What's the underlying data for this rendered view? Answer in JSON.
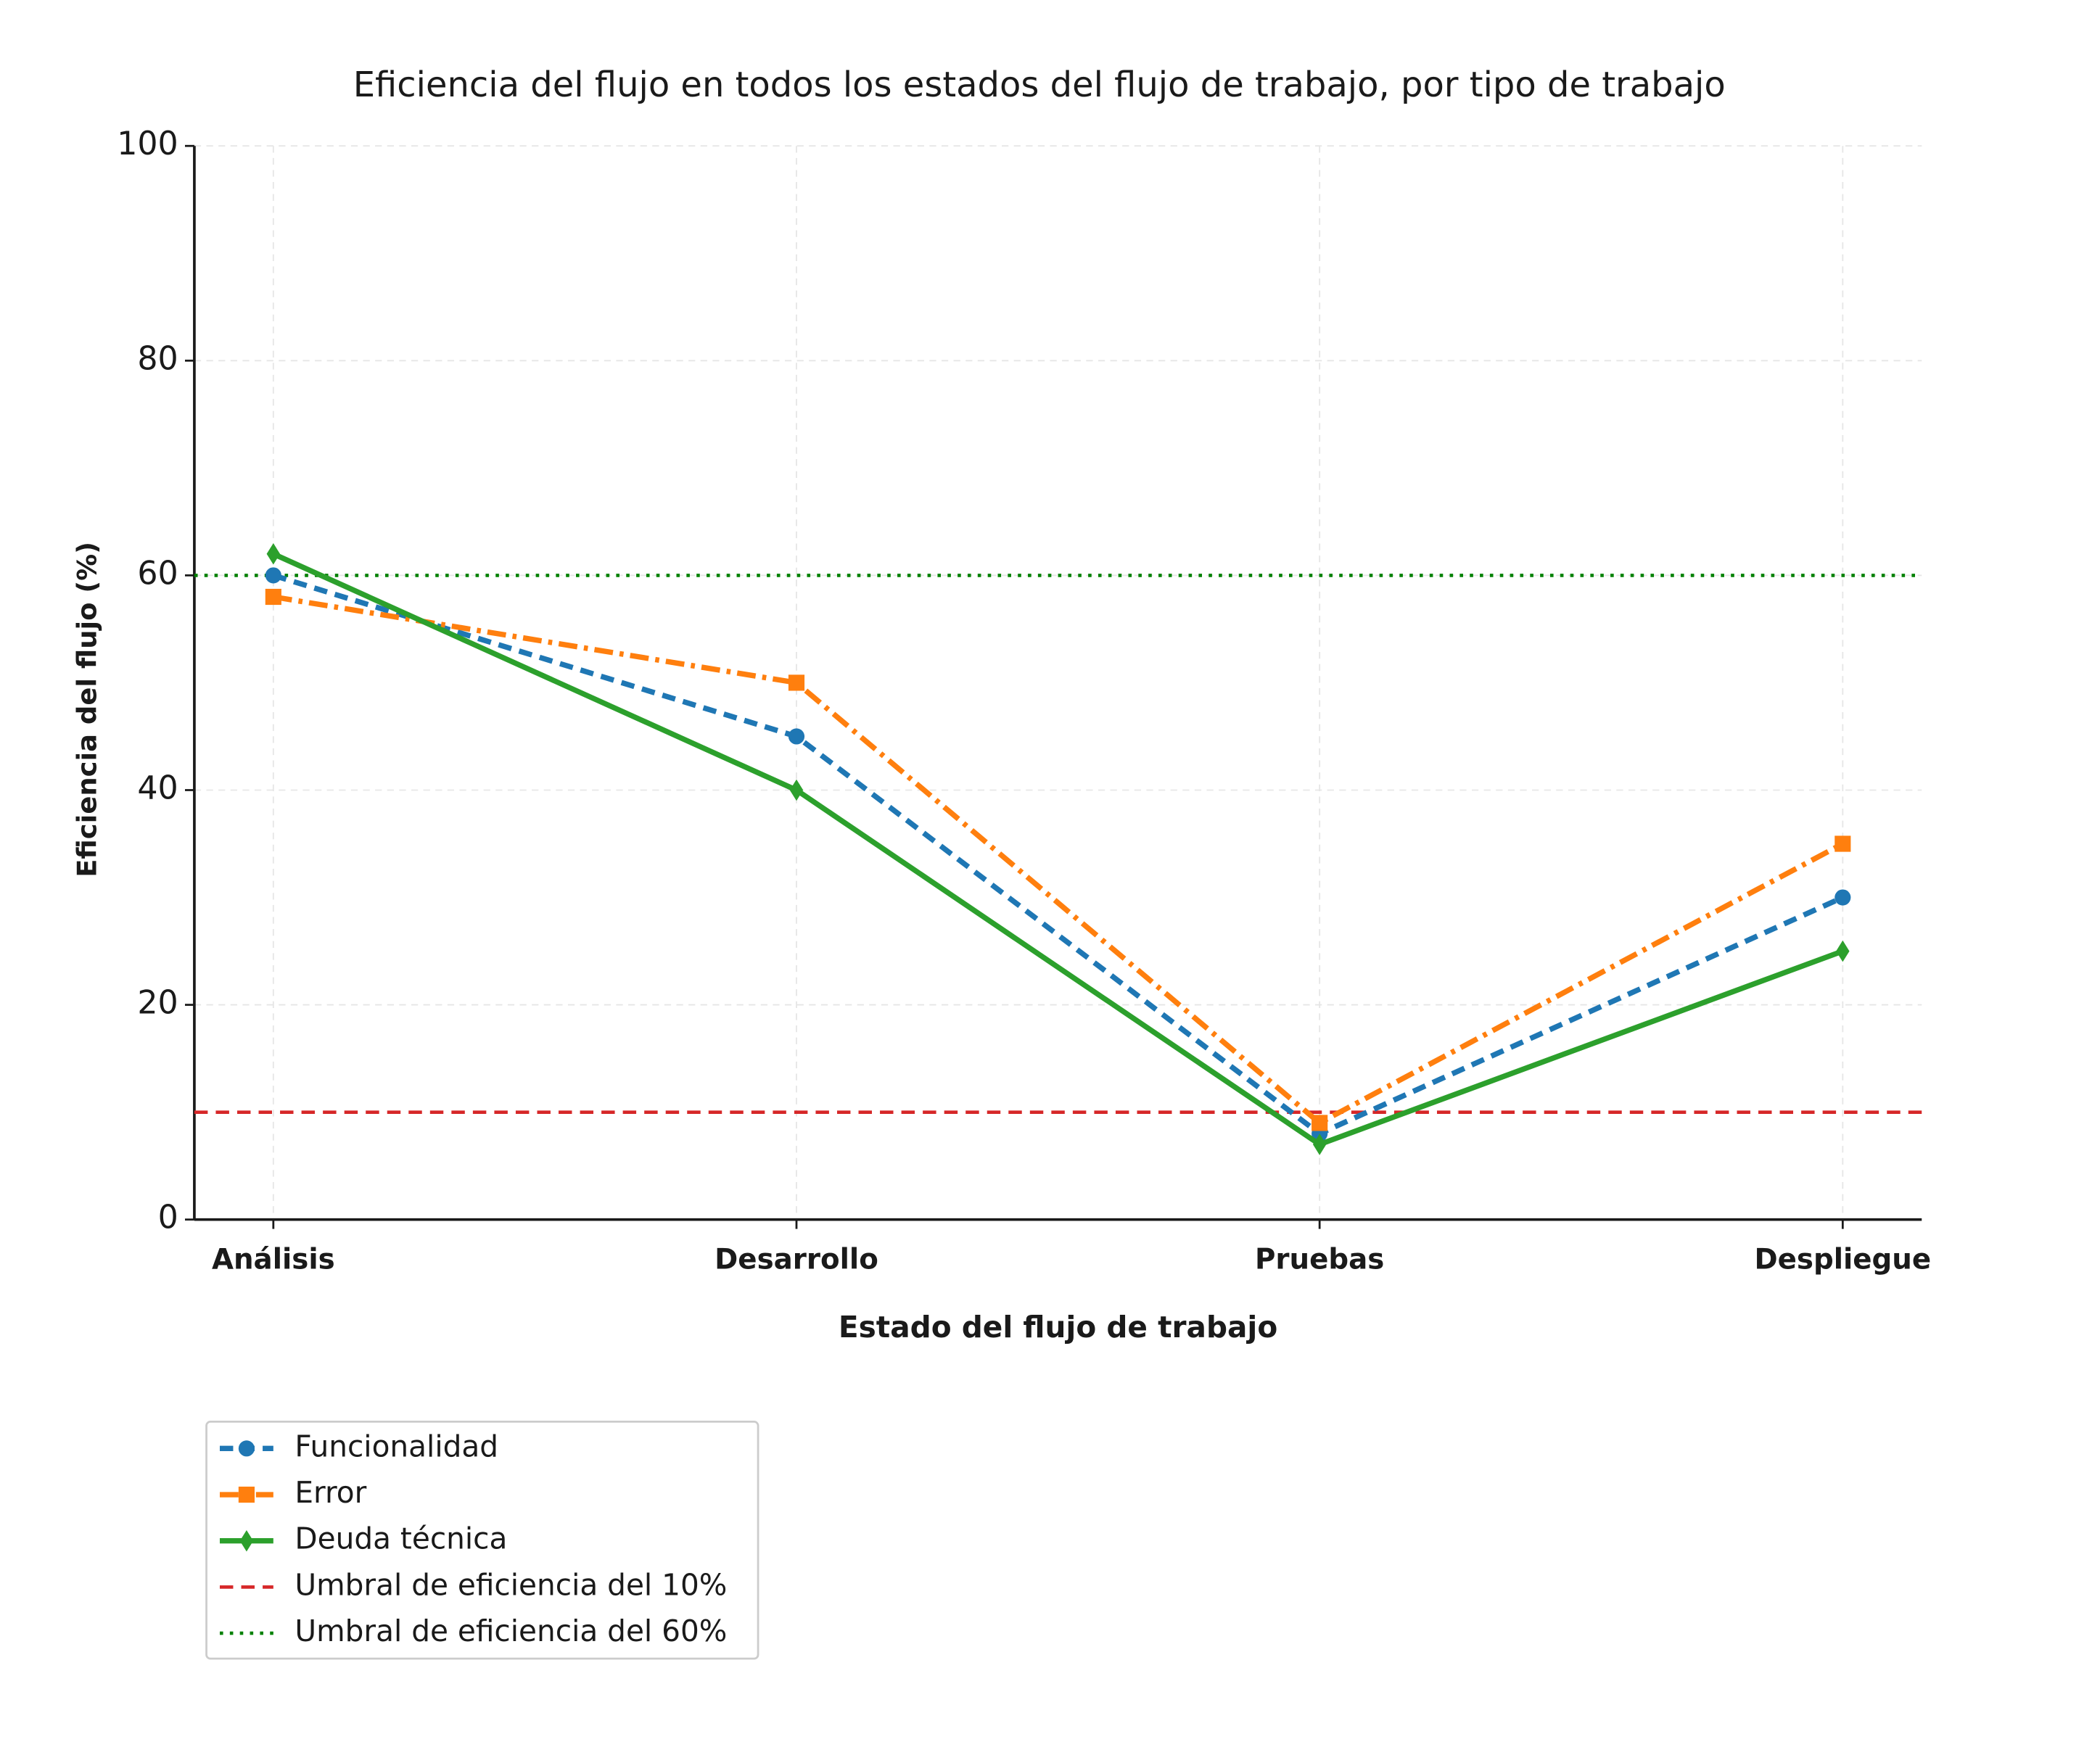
{
  "chart_data": {
    "type": "line",
    "title": "Eficiencia del flujo en todos los estados del flujo de trabajo, por tipo de trabajo",
    "x_label": "Estado del flujo de trabajo",
    "y_label": "Eficiencia del flujo (%)",
    "categories": [
      "Análisis",
      "Desarrollo",
      "Pruebas",
      "Despliegue"
    ],
    "series": [
      {
        "name": "Funcionalidad",
        "color": "#1f77b4",
        "dash": "dashed",
        "marker": "circle",
        "values": [
          60,
          45,
          8,
          30
        ]
      },
      {
        "name": "Error",
        "color": "#ff7f0e",
        "dash": "dashdot",
        "marker": "square",
        "values": [
          58,
          50,
          9,
          35
        ]
      },
      {
        "name": "Deuda técnica",
        "color": "#2ca02c",
        "dash": "solid",
        "marker": "diamond",
        "values": [
          62,
          40,
          7,
          25
        ]
      }
    ],
    "thresholds": [
      {
        "name": "Umbral de eficiencia del 10%",
        "value": 10,
        "color": "#d62728",
        "dash": "dashed"
      },
      {
        "name": "Umbral de eficiencia del 60%",
        "value": 60,
        "color": "#008000",
        "dash": "dotted"
      }
    ],
    "ylim": [
      0,
      100
    ],
    "yticks": [
      0,
      20,
      40,
      60,
      80,
      100
    ],
    "grid": true,
    "legend": "below-left"
  }
}
